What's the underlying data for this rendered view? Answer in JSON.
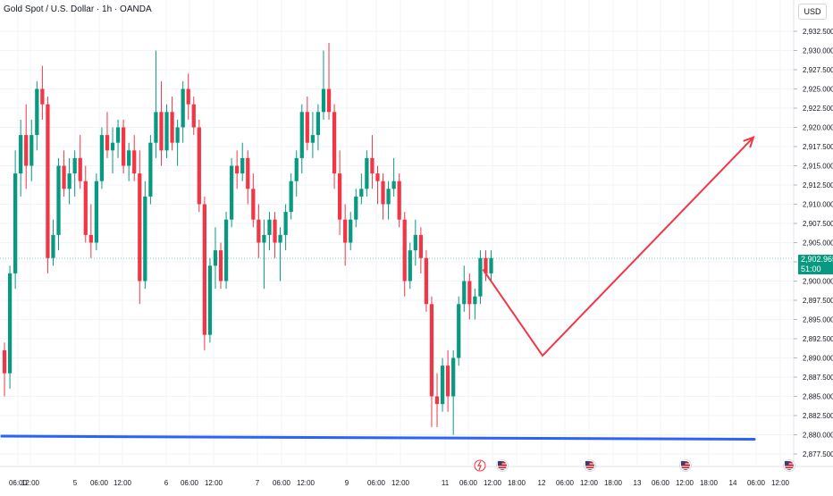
{
  "header": {
    "symbol": "Gold Spot / U.S. Dollar · 1h · OANDA",
    "currency": "USD"
  },
  "last_price": {
    "value": "2,902.965",
    "countdown": "51:00"
  },
  "colors": {
    "up": "#089981",
    "down": "#f23645",
    "support_line": "#2962ff",
    "projection": "#f23645",
    "grid": "#f0f3fa",
    "axis_text": "#131722"
  },
  "chart_data": {
    "type": "candlestick",
    "title": "Gold Spot / U.S. Dollar · 1h · OANDA",
    "y_range": [
      2876.5,
      2934
    ],
    "y_ticks": [
      "2,932.500",
      "2,930.000",
      "2,927.500",
      "2,925.000",
      "2,922.500",
      "2,920.000",
      "2,917.500",
      "2,915.000",
      "2,912.500",
      "2,910.000",
      "2,907.500",
      "2,905.000",
      "2,902.500",
      "2,900.000",
      "2,897.500",
      "2,895.000",
      "2,892.500",
      "2,890.000",
      "2,887.500",
      "2,885.000",
      "2,882.500",
      "2,880.000",
      "2,877.500"
    ],
    "x_ticks": [
      "06:00",
      "12:00",
      "5",
      "06:00",
      "12:00",
      "6",
      "06:00",
      "12:00",
      "7",
      "06:00",
      "12:00",
      "9",
      "06:00",
      "12:00",
      "11",
      "06:00",
      "12:00",
      "18:00",
      "12",
      "06:00",
      "12:00",
      "18:00",
      "13",
      "06:00",
      "12:00",
      "18:00",
      "14",
      "06:00",
      "12:00"
    ],
    "candles_ohlc": [
      [
        2891,
        2892,
        2885,
        2888
      ],
      [
        2888,
        2902,
        2886,
        2901
      ],
      [
        2901,
        2917,
        2899,
        2914
      ],
      [
        2914,
        2921,
        2911,
        2919
      ],
      [
        2919,
        2923,
        2912,
        2915
      ],
      [
        2915,
        2921,
        2913,
        2919
      ],
      [
        2919,
        2926,
        2917,
        2925
      ],
      [
        2925,
        2928,
        2921,
        2923
      ],
      [
        2923,
        2924,
        2901,
        2903
      ],
      [
        2903,
        2908,
        2902,
        2906
      ],
      [
        2906,
        2916,
        2904,
        2915
      ],
      [
        2915,
        2917,
        2911,
        2912
      ],
      [
        2912,
        2916,
        2910,
        2914
      ],
      [
        2914,
        2917,
        2911,
        2916
      ],
      [
        2916,
        2919,
        2912,
        2913
      ],
      [
        2913,
        2915,
        2905,
        2906
      ],
      [
        2906,
        2910,
        2903,
        2905
      ],
      [
        2905,
        2914,
        2904,
        2913
      ],
      [
        2913,
        2920,
        2912,
        2919
      ],
      [
        2919,
        2922,
        2916,
        2917
      ],
      [
        2917,
        2920,
        2914,
        2918
      ],
      [
        2918,
        2921,
        2916,
        2920
      ],
      [
        2920,
        2921,
        2914,
        2915
      ],
      [
        2915,
        2918,
        2913,
        2917
      ],
      [
        2917,
        2919,
        2913,
        2914
      ],
      [
        2914,
        2917,
        2897,
        2900
      ],
      [
        2900,
        2913,
        2899,
        2911
      ],
      [
        2911,
        2919,
        2910,
        2918
      ],
      [
        2918,
        2930,
        2916,
        2922
      ],
      [
        2922,
        2926,
        2915,
        2917
      ],
      [
        2917,
        2923,
        2916,
        2922
      ],
      [
        2922,
        2924,
        2917,
        2918
      ],
      [
        2918,
        2921,
        2915,
        2920
      ],
      [
        2920,
        2926,
        2918,
        2925
      ],
      [
        2925,
        2927,
        2921,
        2923
      ],
      [
        2923,
        2924,
        2919,
        2920
      ],
      [
        2920,
        2921,
        2909,
        2910
      ],
      [
        2910,
        2911,
        2891,
        2893
      ],
      [
        2893,
        2903,
        2892,
        2902
      ],
      [
        2902,
        2907,
        2899,
        2904
      ],
      [
        2904,
        2905,
        2899,
        2900
      ],
      [
        2900,
        2909,
        2899,
        2908
      ],
      [
        2908,
        2916,
        2907,
        2915
      ],
      [
        2915,
        2917,
        2912,
        2914
      ],
      [
        2914,
        2918,
        2913,
        2916
      ],
      [
        2916,
        2917,
        2910,
        2912
      ],
      [
        2912,
        2914,
        2907,
        2908
      ],
      [
        2908,
        2910,
        2903,
        2905
      ],
      [
        2905,
        2908,
        2899,
        2906
      ],
      [
        2906,
        2909,
        2904,
        2908
      ],
      [
        2908,
        2909,
        2903,
        2905
      ],
      [
        2905,
        2907,
        2900,
        2906
      ],
      [
        2906,
        2910,
        2904,
        2909
      ],
      [
        2909,
        2914,
        2908,
        2913
      ],
      [
        2913,
        2917,
        2911,
        2916
      ],
      [
        2916,
        2923,
        2914,
        2922
      ],
      [
        2922,
        2924,
        2917,
        2918
      ],
      [
        2918,
        2922,
        2916,
        2919
      ],
      [
        2919,
        2923,
        2917,
        2922
      ],
      [
        2922,
        2930,
        2921,
        2925
      ],
      [
        2925,
        2931,
        2921,
        2922
      ],
      [
        2922,
        2923,
        2912,
        2914
      ],
      [
        2914,
        2917,
        2906,
        2908
      ],
      [
        2908,
        2910,
        2902,
        2905
      ],
      [
        2905,
        2909,
        2904,
        2908
      ],
      [
        2908,
        2912,
        2907,
        2911
      ],
      [
        2911,
        2914,
        2910,
        2912
      ],
      [
        2912,
        2917,
        2911,
        2916
      ],
      [
        2916,
        2919,
        2912,
        2914
      ],
      [
        2914,
        2915,
        2910,
        2913
      ],
      [
        2913,
        2914,
        2908,
        2910
      ],
      [
        2910,
        2913,
        2908,
        2912
      ],
      [
        2912,
        2916,
        2911,
        2913
      ],
      [
        2913,
        2914,
        2907,
        2908
      ],
      [
        2908,
        2909,
        2898,
        2900
      ],
      [
        2900,
        2905,
        2899,
        2904
      ],
      [
        2904,
        2908,
        2902,
        2906
      ],
      [
        2906,
        2907,
        2901,
        2903
      ],
      [
        2903,
        2904,
        2896,
        2897
      ],
      [
        2897,
        2898,
        2881,
        2885
      ],
      [
        2885,
        2888,
        2881,
        2884
      ],
      [
        2884,
        2890,
        2883,
        2889
      ],
      [
        2889,
        2891,
        2883,
        2885
      ],
      [
        2885,
        2891,
        2880,
        2890
      ],
      [
        2890,
        2898,
        2889,
        2897
      ],
      [
        2897,
        2902,
        2896,
        2900
      ],
      [
        2900,
        2901,
        2895,
        2897
      ],
      [
        2897,
        2899,
        2895,
        2898
      ],
      [
        2898,
        2904,
        2897,
        2903
      ],
      [
        2903,
        2904,
        2900,
        2901
      ],
      [
        2901,
        2904,
        2900,
        2903
      ]
    ],
    "overlays": {
      "support_line": {
        "from": [
          0,
          2880.4
        ],
        "to": [
          140,
          2880.0
        ]
      },
      "projection_path": [
        [
          89,
          2901.5
        ],
        [
          100,
          2890.3
        ],
        [
          139,
          2918.7
        ]
      ]
    }
  }
}
